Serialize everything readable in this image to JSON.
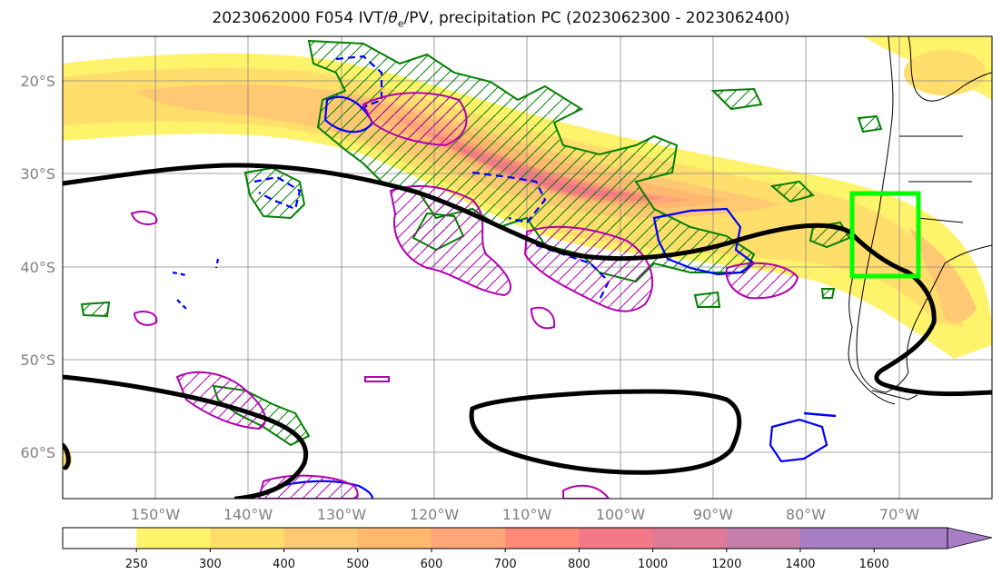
{
  "title": {
    "prefix": "2023062000 F054 IVT/",
    "theta": "θ",
    "sub": "e",
    "suffix": "/PV, precipitation PC (2023062300 - 2023062400)"
  },
  "map": {
    "lon_range": [
      -160,
      -60
    ],
    "lat_range": [
      -65,
      -15
    ],
    "lat_labels": [
      "20°S",
      "30°S",
      "40°S",
      "50°S",
      "60°S"
    ],
    "lon_labels": [
      "150°W",
      "140°W",
      "130°W",
      "120°W",
      "110°W",
      "100°W",
      "90°W",
      "80°W",
      "70°W"
    ],
    "colors": {
      "ivt_contours": "#f2b25f",
      "theta_e_positive": "#008000",
      "theta_e_negative_dashed": "#0000ff",
      "pv": "#b000b0",
      "jet": "#000000",
      "precip_box": "#00ff00"
    }
  },
  "colorbar": {
    "ticks": [
      "250",
      "300",
      "400",
      "500",
      "600",
      "700",
      "800",
      "1000",
      "1200",
      "1400",
      "1600"
    ],
    "colors": [
      "#ffffff",
      "#fff36b",
      "#ffde6b",
      "#ffc872",
      "#ffb96f",
      "#ffa57a",
      "#ff8a78",
      "#f27a88",
      "#df7a98",
      "#c57fab",
      "#a77ec5",
      "#a77ec5"
    ],
    "extend": "max"
  }
}
